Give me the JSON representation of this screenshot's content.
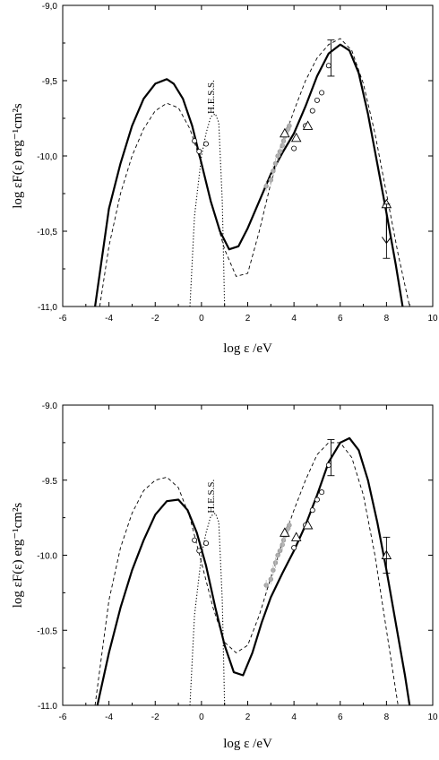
{
  "chart_data": [
    {
      "type": "line",
      "title": "",
      "xlabel": "log ε /eV",
      "ylabel": "log εF(ε) erg⁻¹cm²s",
      "xlim": [
        -6,
        10
      ],
      "ylim": [
        -11.0,
        -9.0
      ],
      "xticks": [
        "-6",
        "-4",
        "-2",
        "0",
        "2",
        "4",
        "6",
        "8",
        "10"
      ],
      "yticks": [
        "-9,0",
        "-9,5",
        "-10,0",
        "-10,5",
        "-11,0"
      ],
      "annotations": [
        "H.E.S.S."
      ],
      "series": [
        {
          "style": "solid",
          "x": [
            -4.6,
            -4.0,
            -3.5,
            -3.0,
            -2.5,
            -2.0,
            -1.5,
            -1.2,
            -0.8,
            -0.4,
            0.0,
            0.4,
            0.8,
            1.2,
            1.6,
            2.0,
            2.5,
            3.0,
            3.5,
            4.0,
            4.5,
            5.0,
            5.5,
            6.0,
            6.4,
            6.8,
            7.2,
            7.6,
            8.0,
            8.4,
            8.7
          ],
          "y": [
            -11.0,
            -10.35,
            -10.05,
            -9.8,
            -9.62,
            -9.52,
            -9.49,
            -9.52,
            -9.62,
            -9.8,
            -10.05,
            -10.3,
            -10.5,
            -10.62,
            -10.6,
            -10.48,
            -10.3,
            -10.12,
            -9.98,
            -9.85,
            -9.67,
            -9.47,
            -9.32,
            -9.26,
            -9.3,
            -9.45,
            -9.72,
            -10.05,
            -10.38,
            -10.72,
            -11.0
          ]
        },
        {
          "style": "dashed",
          "x": [
            -4.4,
            -4.0,
            -3.5,
            -3.0,
            -2.5,
            -2.0,
            -1.5,
            -1.0,
            -0.5,
            0.0,
            0.5,
            1.0,
            1.5,
            2.0,
            2.5,
            3.0,
            3.5,
            4.0,
            4.5,
            5.0,
            5.5,
            6.0,
            6.5,
            7.0,
            7.5,
            8.0,
            8.5,
            9.0
          ],
          "y": [
            -11.0,
            -10.6,
            -10.25,
            -10.0,
            -9.82,
            -9.7,
            -9.65,
            -9.68,
            -9.82,
            -10.05,
            -10.35,
            -10.62,
            -10.8,
            -10.78,
            -10.5,
            -10.18,
            -9.92,
            -9.7,
            -9.5,
            -9.35,
            -9.26,
            -9.22,
            -9.3,
            -9.52,
            -9.85,
            -10.25,
            -10.65,
            -11.0
          ]
        },
        {
          "style": "dotted",
          "x": [
            -0.5,
            -0.3,
            0.0,
            0.2,
            0.4,
            0.6,
            0.75,
            0.9,
            1.0
          ],
          "y": [
            -11.0,
            -10.4,
            -10.0,
            -9.85,
            -9.74,
            -9.72,
            -9.78,
            -10.3,
            -11.0
          ]
        },
        {
          "name": "H.E.S.S.",
          "style": "grey points",
          "x": [
            2.8,
            3.0,
            3.1,
            3.2,
            3.3,
            3.4,
            3.5,
            3.55,
            3.6,
            3.65,
            3.7,
            3.75,
            3.8
          ],
          "y": [
            -10.2,
            -10.16,
            -10.1,
            -10.05,
            -10.0,
            -9.97,
            -9.93,
            -9.9,
            -9.87,
            -9.85,
            -9.83,
            -9.82,
            -9.8
          ]
        },
        {
          "style": "open circles",
          "x": [
            -0.3,
            -0.1,
            0.2,
            4.0,
            4.5,
            4.8,
            5.0,
            5.2,
            5.5
          ],
          "y": [
            -9.9,
            -9.97,
            -9.92,
            -9.95,
            -9.8,
            -9.7,
            -9.63,
            -9.58,
            -9.4
          ]
        },
        {
          "style": "open triangles",
          "x": [
            3.6,
            4.1,
            4.6,
            8.0
          ],
          "y": [
            -9.85,
            -9.88,
            -9.8,
            -10.32
          ]
        },
        {
          "style": "error bars",
          "x": [
            5.6,
            8.0
          ],
          "y": [
            -9.35,
            -10.5
          ],
          "yerr_low": [
            0.12,
            0.18
          ],
          "yerr_high": [
            0.12,
            0.18
          ]
        }
      ]
    },
    {
      "type": "line",
      "title": "",
      "xlabel": "log ε /eV",
      "ylabel": "log εF(ε) erg⁻¹cm²s",
      "xlim": [
        -6,
        10
      ],
      "ylim": [
        -11.0,
        -9.0
      ],
      "xticks": [
        "-6",
        "-4",
        "-2",
        "0",
        "2",
        "4",
        "6",
        "8",
        "10"
      ],
      "yticks": [
        "-9.0",
        "-9.5",
        "-10.0",
        "-10.5",
        "-11.0"
      ],
      "annotations": [
        "H.E.S.S."
      ],
      "series": [
        {
          "style": "solid",
          "x": [
            -4.5,
            -4.0,
            -3.5,
            -3.0,
            -2.5,
            -2.0,
            -1.5,
            -1.0,
            -0.6,
            -0.2,
            0.2,
            0.6,
            1.0,
            1.4,
            1.8,
            2.2,
            2.6,
            3.0,
            3.5,
            4.0,
            4.5,
            5.0,
            5.5,
            6.0,
            6.4,
            6.8,
            7.2,
            7.6,
            8.0,
            8.4,
            8.8,
            9.0
          ],
          "y": [
            -11.0,
            -10.65,
            -10.35,
            -10.1,
            -9.9,
            -9.73,
            -9.64,
            -9.63,
            -9.7,
            -9.85,
            -10.07,
            -10.35,
            -10.6,
            -10.78,
            -10.8,
            -10.65,
            -10.45,
            -10.28,
            -10.12,
            -9.97,
            -9.8,
            -9.6,
            -9.38,
            -9.25,
            -9.22,
            -9.3,
            -9.5,
            -9.78,
            -10.1,
            -10.45,
            -10.8,
            -11.0
          ]
        },
        {
          "style": "dashed",
          "x": [
            -4.6,
            -4.0,
            -3.5,
            -3.0,
            -2.5,
            -2.0,
            -1.5,
            -1.0,
            -0.5,
            0.0,
            0.5,
            1.0,
            1.5,
            2.0,
            2.5,
            3.0,
            3.5,
            4.0,
            4.5,
            5.0,
            5.5,
            6.0,
            6.5,
            7.0,
            7.5,
            8.0,
            8.5
          ],
          "y": [
            -11.0,
            -10.3,
            -9.95,
            -9.72,
            -9.57,
            -9.5,
            -9.48,
            -9.55,
            -9.75,
            -10.05,
            -10.35,
            -10.58,
            -10.65,
            -10.6,
            -10.4,
            -10.15,
            -9.92,
            -9.7,
            -9.5,
            -9.33,
            -9.25,
            -9.25,
            -9.35,
            -9.6,
            -10.0,
            -10.5,
            -11.0
          ]
        },
        {
          "style": "dotted",
          "x": [
            -0.5,
            -0.3,
            0.0,
            0.2,
            0.4,
            0.6,
            0.75,
            0.9,
            1.0
          ],
          "y": [
            -11.0,
            -10.4,
            -10.0,
            -9.85,
            -9.74,
            -9.72,
            -9.78,
            -10.3,
            -11.0
          ]
        },
        {
          "name": "H.E.S.S.",
          "style": "grey points",
          "x": [
            2.8,
            3.0,
            3.1,
            3.2,
            3.3,
            3.4,
            3.5,
            3.55,
            3.6,
            3.65,
            3.7,
            3.75,
            3.8
          ],
          "y": [
            -10.2,
            -10.16,
            -10.1,
            -10.05,
            -10.0,
            -9.97,
            -9.93,
            -9.9,
            -9.87,
            -9.85,
            -9.83,
            -9.82,
            -9.8
          ]
        },
        {
          "style": "open circles",
          "x": [
            -0.3,
            -0.1,
            0.2,
            4.0,
            4.5,
            4.8,
            5.0,
            5.2,
            5.5
          ],
          "y": [
            -9.9,
            -9.97,
            -9.92,
            -9.95,
            -9.8,
            -9.7,
            -9.63,
            -9.58,
            -9.4
          ]
        },
        {
          "style": "open triangles",
          "x": [
            3.6,
            4.1,
            4.6,
            8.0
          ],
          "y": [
            -9.85,
            -9.88,
            -9.8,
            -10.0
          ]
        },
        {
          "style": "error bars",
          "x": [
            5.6,
            8.0
          ],
          "y": [
            -9.35,
            -10.0
          ],
          "yerr_low": [
            0.12,
            0.12
          ],
          "yerr_high": [
            0.12,
            0.12
          ]
        }
      ]
    }
  ]
}
